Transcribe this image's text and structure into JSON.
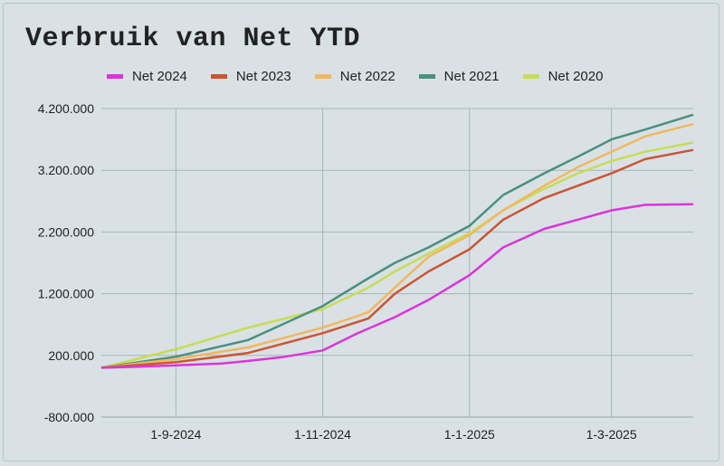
{
  "chart_data": {
    "type": "line",
    "title": "Verbruik van Net YTD",
    "xlabel": "",
    "ylabel": "",
    "x_ticks": [
      "1-9-2024",
      "1-11-2024",
      "1-1-2025",
      "1-3-2025"
    ],
    "y_ticks": [
      "4.200.000",
      "3.200.000",
      "2.200.000",
      "1.200.000",
      "200.000",
      "-800.000"
    ],
    "ylim": [
      -800000,
      4200000
    ],
    "xlim": [
      "2024-08-01",
      "2025-04-04"
    ],
    "grid": true,
    "legend_position": "top",
    "series": [
      {
        "name": "Net 2024",
        "color": "#dd33dd",
        "points": [
          [
            "2024-08-01",
            0
          ],
          [
            "2024-08-15",
            15000
          ],
          [
            "2024-09-01",
            40000
          ],
          [
            "2024-09-20",
            70000
          ],
          [
            "2024-10-01",
            110000
          ],
          [
            "2024-10-15",
            170000
          ],
          [
            "2024-11-01",
            280000
          ],
          [
            "2024-11-15",
            550000
          ],
          [
            "2024-12-01",
            820000
          ],
          [
            "2024-12-15",
            1100000
          ],
          [
            "2025-01-01",
            1500000
          ],
          [
            "2025-01-15",
            1950000
          ],
          [
            "2025-02-01",
            2250000
          ],
          [
            "2025-02-15",
            2400000
          ],
          [
            "2025-03-01",
            2550000
          ],
          [
            "2025-03-15",
            2640000
          ],
          [
            "2025-04-04",
            2650000
          ]
        ]
      },
      {
        "name": "Net 2023",
        "color": "#cc5533",
        "points": [
          [
            "2024-08-01",
            0
          ],
          [
            "2024-09-01",
            90000
          ],
          [
            "2024-10-01",
            240000
          ],
          [
            "2024-11-01",
            560000
          ],
          [
            "2024-11-20",
            800000
          ],
          [
            "2024-12-01",
            1200000
          ],
          [
            "2024-12-15",
            1560000
          ],
          [
            "2025-01-01",
            1920000
          ],
          [
            "2025-01-15",
            2400000
          ],
          [
            "2025-02-01",
            2750000
          ],
          [
            "2025-02-15",
            2950000
          ],
          [
            "2025-03-01",
            3150000
          ],
          [
            "2025-03-15",
            3380000
          ],
          [
            "2025-04-04",
            3530000
          ]
        ]
      },
      {
        "name": "Net 2022",
        "color": "#f0b860",
        "points": [
          [
            "2024-08-01",
            0
          ],
          [
            "2024-09-01",
            140000
          ],
          [
            "2024-10-01",
            330000
          ],
          [
            "2024-11-01",
            650000
          ],
          [
            "2024-11-20",
            900000
          ],
          [
            "2024-12-01",
            1300000
          ],
          [
            "2024-12-15",
            1800000
          ],
          [
            "2025-01-01",
            2150000
          ],
          [
            "2025-01-15",
            2550000
          ],
          [
            "2025-02-01",
            2950000
          ],
          [
            "2025-02-15",
            3250000
          ],
          [
            "2025-03-01",
            3500000
          ],
          [
            "2025-03-15",
            3750000
          ],
          [
            "2025-04-04",
            3950000
          ]
        ]
      },
      {
        "name": "Net 2021",
        "color": "#4a9080",
        "points": [
          [
            "2024-08-01",
            0
          ],
          [
            "2024-09-01",
            180000
          ],
          [
            "2024-10-01",
            450000
          ],
          [
            "2024-11-01",
            1000000
          ],
          [
            "2024-11-20",
            1450000
          ],
          [
            "2024-12-01",
            1700000
          ],
          [
            "2024-12-15",
            1950000
          ],
          [
            "2025-01-01",
            2300000
          ],
          [
            "2025-01-15",
            2800000
          ],
          [
            "2025-02-01",
            3150000
          ],
          [
            "2025-02-15",
            3420000
          ],
          [
            "2025-03-01",
            3700000
          ],
          [
            "2025-03-15",
            3860000
          ],
          [
            "2025-04-04",
            4100000
          ]
        ]
      },
      {
        "name": "Net 2020",
        "color": "#c8dc55",
        "points": [
          [
            "2024-08-01",
            0
          ],
          [
            "2024-09-01",
            300000
          ],
          [
            "2024-10-01",
            650000
          ],
          [
            "2024-11-01",
            950000
          ],
          [
            "2024-11-20",
            1300000
          ],
          [
            "2024-12-01",
            1560000
          ],
          [
            "2024-12-15",
            1850000
          ],
          [
            "2025-01-01",
            2180000
          ],
          [
            "2025-01-15",
            2550000
          ],
          [
            "2025-02-01",
            2900000
          ],
          [
            "2025-02-15",
            3150000
          ],
          [
            "2025-03-01",
            3350000
          ],
          [
            "2025-03-15",
            3500000
          ],
          [
            "2025-04-04",
            3650000
          ]
        ]
      }
    ]
  }
}
